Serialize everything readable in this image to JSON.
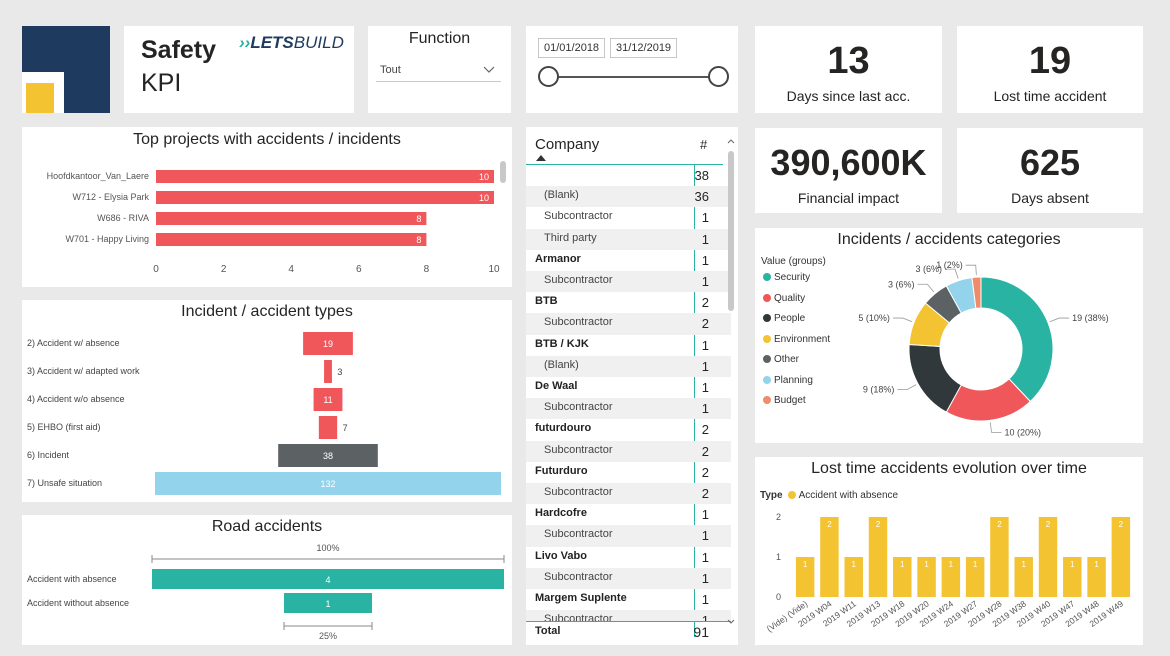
{
  "brand": {
    "title_line1": "Safety",
    "title_line2": "KPI",
    "logo_arrows": "››",
    "logo_lets": "LETS",
    "logo_build": "BUILD"
  },
  "filter": {
    "label": "Function",
    "value": "Tout"
  },
  "dates": {
    "start": "01/01/2018",
    "end": "31/12/2019"
  },
  "kpis": [
    {
      "value": "13",
      "label": "Days since last acc."
    },
    {
      "value": "19",
      "label": "Lost time accident"
    },
    {
      "value": "390,600K",
      "label": "Financial impact"
    },
    {
      "value": "625",
      "label": "Days absent"
    }
  ],
  "company_table": {
    "header": {
      "company": "Company",
      "count": "#"
    },
    "rows": [
      {
        "name": "",
        "count": "38",
        "kind": "grp"
      },
      {
        "name": "(Blank)",
        "count": "36",
        "kind": "sub"
      },
      {
        "name": "Subcontractor",
        "count": "1",
        "kind": "sub"
      },
      {
        "name": "Third party",
        "count": "1",
        "kind": "sub"
      },
      {
        "name": "Armanor",
        "count": "1",
        "kind": "grp"
      },
      {
        "name": "Subcontractor",
        "count": "1",
        "kind": "sub"
      },
      {
        "name": "BTB",
        "count": "2",
        "kind": "grp"
      },
      {
        "name": "Subcontractor",
        "count": "2",
        "kind": "sub"
      },
      {
        "name": "BTB / KJK",
        "count": "1",
        "kind": "grp"
      },
      {
        "name": "(Blank)",
        "count": "1",
        "kind": "sub"
      },
      {
        "name": "De Waal",
        "count": "1",
        "kind": "grp"
      },
      {
        "name": "Subcontractor",
        "count": "1",
        "kind": "sub"
      },
      {
        "name": "futurdouro",
        "count": "2",
        "kind": "grp"
      },
      {
        "name": "Subcontractor",
        "count": "2",
        "kind": "sub"
      },
      {
        "name": "Futurduro",
        "count": "2",
        "kind": "grp"
      },
      {
        "name": "Subcontractor",
        "count": "2",
        "kind": "sub"
      },
      {
        "name": "Hardcofre",
        "count": "1",
        "kind": "grp"
      },
      {
        "name": "Subcontractor",
        "count": "1",
        "kind": "sub"
      },
      {
        "name": "Livo Vabo",
        "count": "1",
        "kind": "grp"
      },
      {
        "name": "Subcontractor",
        "count": "1",
        "kind": "sub"
      },
      {
        "name": "Margem Suplente",
        "count": "1",
        "kind": "grp"
      },
      {
        "name": "Subcontractor",
        "count": "1",
        "kind": "sub"
      }
    ],
    "total_label": "Total",
    "total_value": "91"
  },
  "chart_data": [
    {
      "type": "bar",
      "title": "Top projects with accidents / incidents",
      "orientation": "horizontal",
      "categories": [
        "Hoofdkantoor_Van_Laere",
        "W712 - Elysia Park",
        "W686 - RIVA",
        "W701 - Happy Living"
      ],
      "values": [
        10,
        10,
        8,
        8
      ],
      "xlim": [
        0,
        10
      ],
      "ticks": [
        "0",
        "2",
        "4",
        "6",
        "8",
        "10"
      ],
      "color": "#f0575a"
    },
    {
      "type": "bar",
      "title": "Incident / accident types",
      "orientation": "funnel",
      "categories": [
        "2) Accident w/ absence",
        "3) Accident w/ adapted work",
        "4) Accident w/o absence",
        "5) EHBO (first aid)",
        "6) Incident",
        "7) Unsafe situation"
      ],
      "values": [
        19,
        3,
        11,
        7,
        38,
        132
      ],
      "colors": [
        "#f0575a",
        "#f0575a",
        "#f0575a",
        "#f0575a",
        "#5c6263",
        "#94d3ec"
      ]
    },
    {
      "type": "bar",
      "title": "Road accidents",
      "orientation": "funnel",
      "categories": [
        "Accident with absence",
        "Accident without absence"
      ],
      "values": [
        4,
        1
      ],
      "top_pct_label": "100%",
      "bottom_pct_label": "25%",
      "color": "#29b3a3"
    },
    {
      "type": "pie",
      "title": "Incidents / accidents categories",
      "legend_title": "Value (groups)",
      "legend_position": "left",
      "categories": [
        "Security",
        "Quality",
        "People",
        "Environment",
        "Other",
        "Planning",
        "Budget"
      ],
      "values": [
        19,
        10,
        9,
        5,
        3,
        3,
        1
      ],
      "labels": [
        "19 (38%)",
        "10 (20%)",
        "9 (18%)",
        "5 (10%)",
        "3 (6%)",
        "3 (6%)",
        "1 (2%)"
      ],
      "colors": [
        "#29b3a3",
        "#f0575a",
        "#30383b",
        "#f3c332",
        "#5c6263",
        "#94d3ec",
        "#f08c6c"
      ]
    },
    {
      "type": "bar",
      "title": "Lost time accidents evolution over time",
      "legend_title": "Type",
      "series_name": "Accident with absence",
      "categories": [
        "(Vide) (Vide)",
        "2019 W04",
        "2019 W11",
        "2019 W13",
        "2019 W18",
        "2019 W20",
        "2019 W24",
        "2019 W27",
        "2019 W28",
        "2019 W38",
        "2019 W40",
        "2019 W47",
        "2019 W48",
        "2019 W49"
      ],
      "values": [
        1,
        2,
        1,
        2,
        1,
        1,
        1,
        1,
        2,
        1,
        2,
        1,
        1,
        2
      ],
      "ylim": [
        0,
        2
      ],
      "yticks": [
        "0",
        "1",
        "2"
      ],
      "color": "#f3c332"
    }
  ]
}
